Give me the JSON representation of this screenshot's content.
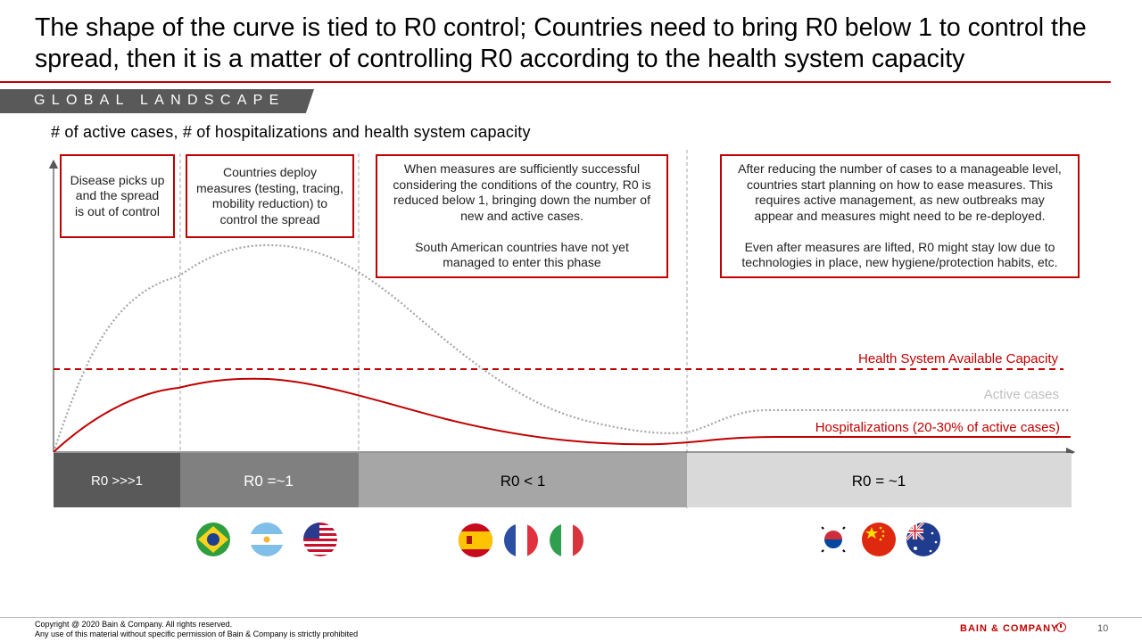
{
  "title": "The shape of the curve is tied to R0 control; Countries need to bring R0 below 1 to control the spread, then it is a matter of controlling R0 according to the health system capacity",
  "section_tag": "GLOBAL LANDSCAPE",
  "subtitle": "# of active cases, # of hospitalizations and health system capacity",
  "boxes": [
    "Disease picks up\nand the spread\nis out of control",
    "Countries deploy\nmeasures (testing, tracing,\nmobility reduction) to\ncontrol the spread",
    "When measures are sufficiently successful\nconsidering the conditions of the country, R0 is\nreduced below 1, bringing down the number of\nnew and active cases.\n\nSouth American countries have not yet\nmanaged to enter this phase",
    "After reducing the number of cases to a manageable level,\ncountries start planning on how to ease measures. This\nrequires active management, as new outbreaks may\nappear and measures might need to be re-deployed.\n\nEven after measures are lifted, R0 might stay low due to\ntechnologies in place, new hygiene/protection habits, etc."
  ],
  "line_labels": {
    "capacity": "Health System Available Capacity",
    "active": "Active cases",
    "hospital": "Hospitalizations (20-30% of active cases)"
  },
  "phases": [
    "R0 >>>1",
    "R0 =~1",
    "R0 < 1",
    "R0 = ~1"
  ],
  "flags": [
    [
      "brazil",
      "argentina",
      "usa"
    ],
    [
      "spain",
      "france",
      "italy"
    ],
    [
      "south-korea",
      "china",
      "australia"
    ]
  ],
  "colors": {
    "accent": "#c00000",
    "active_line": "#a6a6a6",
    "phase_1": "#595959",
    "phase_2": "#808080",
    "phase_3": "#a6a6a6",
    "phase_4": "#d9d9d9"
  },
  "footer": {
    "copyright": "Copyright @ 2020 Bain & Company. All rights reserved.",
    "disclaimer": "Any use of this material without specific permission of Bain & Company is strictly prohibited",
    "brand": "BAIN & COMPANY",
    "page": "10"
  }
}
